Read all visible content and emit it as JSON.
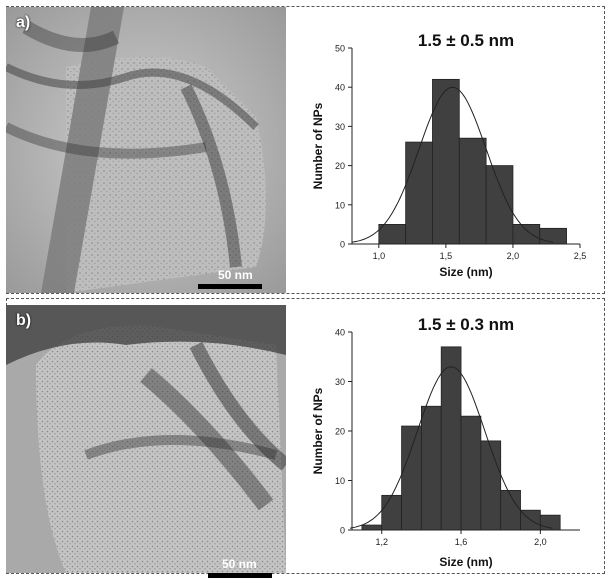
{
  "panels": [
    {
      "letter": "a)",
      "scale_label": "50 nm"
    },
    {
      "letter": "b)",
      "scale_label": "50 nm"
    }
  ],
  "chart_data": [
    {
      "type": "bar",
      "title": "1.5 ± 0.5 nm",
      "xlabel": "Size (nm)",
      "ylabel": "Number of NPs",
      "xlim": [
        0.8,
        2.5
      ],
      "ylim": [
        0,
        50
      ],
      "xticks": [
        1.0,
        1.5,
        2.0,
        2.5
      ],
      "xtick_labels": [
        "1,0",
        "1,5",
        "2,0",
        "2,5"
      ],
      "yticks": [
        0,
        10,
        20,
        30,
        40,
        50
      ],
      "bin_width": 0.2,
      "x": [
        1.1,
        1.3,
        1.5,
        1.7,
        1.9,
        2.1,
        2.3
      ],
      "values": [
        5,
        26,
        42,
        27,
        20,
        5,
        4
      ],
      "fit": {
        "type": "gaussian",
        "mean": 1.55,
        "sigma": 0.25,
        "peak": 40
      },
      "bar_color": "#404040",
      "grid": false
    },
    {
      "type": "bar",
      "title": "1.5 ± 0.3 nm",
      "xlabel": "Size (nm)",
      "ylabel": "Number of NPs",
      "xlim": [
        1.05,
        2.2
      ],
      "ylim": [
        0,
        40
      ],
      "xticks": [
        1.2,
        1.6,
        2.0
      ],
      "xtick_labels": [
        "1,2",
        "1,6",
        "2,0"
      ],
      "yticks": [
        0,
        10,
        20,
        30,
        40
      ],
      "bin_width": 0.1,
      "x": [
        1.15,
        1.25,
        1.35,
        1.45,
        1.55,
        1.65,
        1.75,
        1.85,
        1.95,
        2.05
      ],
      "values": [
        1,
        7,
        21,
        25,
        37,
        23,
        18,
        8,
        4,
        3
      ],
      "fit": {
        "type": "gaussian",
        "mean": 1.55,
        "sigma": 0.17,
        "peak": 33
      },
      "bar_color": "#404040",
      "grid": false
    }
  ]
}
